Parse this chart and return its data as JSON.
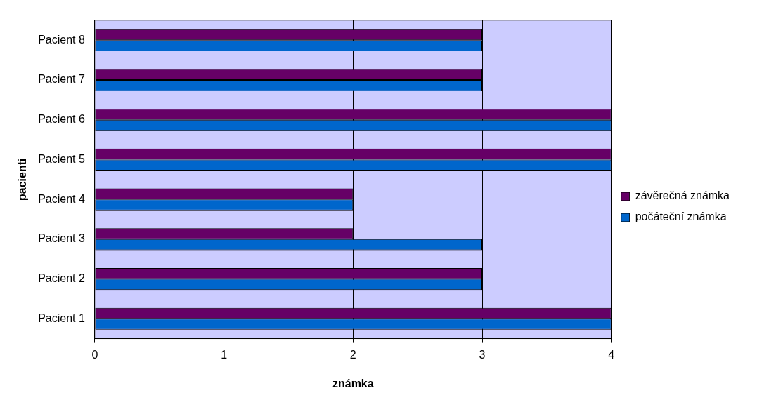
{
  "chart_data": {
    "type": "bar",
    "orientation": "horizontal",
    "xlabel": "známka",
    "ylabel": "pacienti",
    "categories": [
      "Pacient 8",
      "Pacient 7",
      "Pacient 6",
      "Pacient 5",
      "Pacient 4",
      "Pacient 3",
      "Pacient 2",
      "Pacient 1"
    ],
    "series": [
      {
        "name": "závěrečná známka",
        "color": "#660066",
        "values": [
          3,
          3,
          4,
          4,
          2,
          2,
          3,
          4
        ]
      },
      {
        "name": "počáteční známka",
        "color": "#0066cc",
        "values": [
          3,
          3,
          4,
          4,
          2,
          3,
          3,
          4
        ]
      }
    ],
    "xlim": [
      0,
      4
    ],
    "xticks": [
      0,
      1,
      2,
      3,
      4
    ],
    "grid": "x",
    "legend": "right"
  }
}
